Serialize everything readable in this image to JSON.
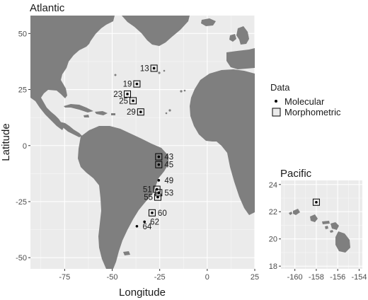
{
  "atlantic": {
    "title": "Atlantic",
    "x_axis_label": "Longitude",
    "y_axis_label": "Latitude",
    "x_ticks": [
      "-75",
      "-50",
      "-25",
      "0",
      "25"
    ],
    "y_ticks": [
      "50",
      "25",
      "0",
      "-25",
      "-50"
    ]
  },
  "pacific": {
    "title": "Pacific",
    "x_ticks": [
      "-160",
      "-158",
      "-156",
      "-154"
    ],
    "y_ticks": [
      "24",
      "22",
      "20",
      "18"
    ]
  },
  "legend": {
    "title": "Data",
    "items": [
      {
        "label": "Molecular",
        "symbol": "dot"
      },
      {
        "label": "Morphometric",
        "symbol": "open-square"
      }
    ]
  },
  "colors": {
    "panel_background": "#ebebeb",
    "land": "#7f7f7f",
    "grid_major": "#ffffff",
    "marker": "#000000"
  },
  "chart_data": [
    {
      "type": "scatter",
      "title": "Atlantic",
      "xlabel": "Longitude",
      "ylabel": "Latitude",
      "xlim": [
        -93,
        25
      ],
      "ylim": [
        -55,
        58
      ],
      "grid": true,
      "legend_position": "right",
      "series": [
        {
          "name": "Molecular",
          "marker": "dot"
        },
        {
          "name": "Morphometric",
          "marker": "open-square"
        }
      ],
      "points": [
        {
          "label": "13",
          "lon": -28,
          "lat": 34.5,
          "molecular": true,
          "morphometric": true
        },
        {
          "label": "19",
          "lon": -37,
          "lat": 27.5,
          "molecular": true,
          "morphometric": true
        },
        {
          "label": "23",
          "lon": -42,
          "lat": 23,
          "molecular": true,
          "morphometric": true
        },
        {
          "label": "25",
          "lon": -39,
          "lat": 20,
          "molecular": true,
          "morphometric": true
        },
        {
          "label": "29",
          "lon": -35,
          "lat": 15,
          "molecular": true,
          "morphometric": true
        },
        {
          "label": "43",
          "lon": -25.5,
          "lat": -5,
          "molecular": true,
          "morphometric": true
        },
        {
          "label": "45",
          "lon": -25.5,
          "lat": -8.5,
          "molecular": true,
          "morphometric": true
        },
        {
          "label": "49",
          "lon": -25.5,
          "lat": -15.5,
          "molecular": true,
          "morphometric": false
        },
        {
          "label": "51",
          "lon": -26.5,
          "lat": -19.5,
          "molecular": true,
          "morphometric": true
        },
        {
          "label": "53",
          "lon": -25.5,
          "lat": -21,
          "molecular": true,
          "morphometric": true
        },
        {
          "label": "55",
          "lon": -26,
          "lat": -23,
          "molecular": true,
          "morphometric": true
        },
        {
          "label": "60",
          "lon": -29,
          "lat": -30,
          "molecular": true,
          "morphometric": true
        },
        {
          "label": "62",
          "lon": -33,
          "lat": -34,
          "molecular": true,
          "morphometric": false
        },
        {
          "label": "64",
          "lon": -37,
          "lat": -36,
          "molecular": true,
          "morphometric": false
        }
      ]
    },
    {
      "type": "scatter",
      "title": "Pacific",
      "xlim": [
        -161.3,
        -153.7
      ],
      "ylim": [
        17.8,
        24.3
      ],
      "grid": true,
      "points": [
        {
          "label": "",
          "lon": -158,
          "lat": 22.7,
          "molecular": true,
          "morphometric": true
        }
      ]
    }
  ]
}
